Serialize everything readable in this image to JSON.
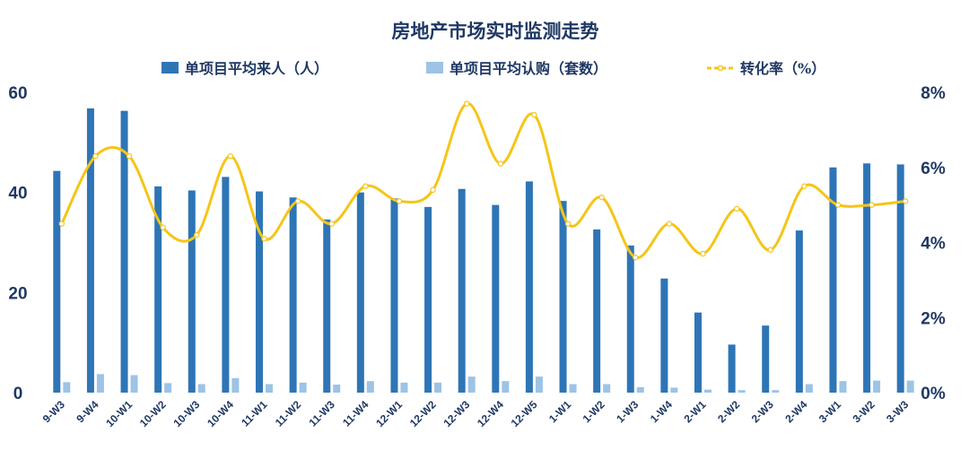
{
  "chart_data": {
    "type": "bar",
    "title": "房地产市场实时监测走势",
    "categories": [
      "9-W3",
      "9-W4",
      "10-W1",
      "10-W2",
      "10-W3",
      "10-W4",
      "11-W1",
      "11-W2",
      "11-W3",
      "11-W4",
      "12-W1",
      "12-W2",
      "12-W3",
      "12-W4",
      "12-W5",
      "1-W1",
      "1-W2",
      "1-W3",
      "1-W4",
      "2-W1",
      "2-W2",
      "2-W3",
      "2-W4",
      "3-W1",
      "3-W2",
      "3-W3"
    ],
    "series": [
      {
        "name": "单项目平均来人（人）",
        "type": "bar",
        "axis": "left",
        "color": "#2e75b6",
        "values": [
          44.3,
          56.8,
          56.3,
          41.2,
          40.4,
          43.1,
          40.2,
          39.0,
          34.6,
          40.0,
          38.8,
          37.1,
          40.7,
          37.5,
          42.2,
          38.3,
          32.6,
          29.4,
          22.8,
          16.0,
          9.6,
          13.4,
          32.4,
          45.0,
          45.8,
          45.6
        ]
      },
      {
        "name": "单项目平均认购（套数）",
        "type": "bar",
        "axis": "left",
        "color": "#9dc3e6",
        "values": [
          2.1,
          3.7,
          3.5,
          1.9,
          1.7,
          2.9,
          1.7,
          2.0,
          1.6,
          2.3,
          2.0,
          2.0,
          3.2,
          2.3,
          3.2,
          1.7,
          1.7,
          1.1,
          1.0,
          0.6,
          0.5,
          0.5,
          1.7,
          2.3,
          2.4,
          2.4
        ]
      },
      {
        "name": "转化率（%）",
        "type": "line",
        "axis": "right",
        "color": "#f5c518",
        "values": [
          4.5,
          6.3,
          6.3,
          4.4,
          4.2,
          6.3,
          4.1,
          5.1,
          4.5,
          5.5,
          5.1,
          5.4,
          7.7,
          6.1,
          7.4,
          4.5,
          5.2,
          3.6,
          4.5,
          3.7,
          4.9,
          3.8,
          5.5,
          5.0,
          5.0,
          5.1
        ]
      }
    ],
    "y_left": {
      "ylim": [
        0,
        60
      ],
      "ticks": [
        "0",
        "20",
        "40",
        "60"
      ]
    },
    "y_right": {
      "ylim": [
        0,
        8
      ],
      "ticks": [
        "0%",
        "2%",
        "4%",
        "6%",
        "8%"
      ]
    },
    "legend_position": "top",
    "grid": false
  }
}
